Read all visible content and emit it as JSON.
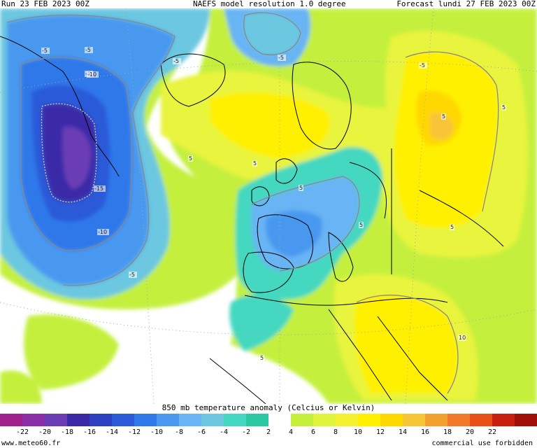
{
  "header": {
    "run": "Run 23 FEB 2023 00Z",
    "model": "NAEFS model resolution 1.0 degree",
    "forecast": "Forecast lundi 27 FEB 2023 00Z"
  },
  "map": {
    "caption": "850 mb temperature anomaly (Celcius or Kelvin)",
    "contour_labels": [
      "-5",
      "-10",
      "-15",
      "-5",
      "-10",
      "-5",
      "-5",
      "5",
      "5",
      "5",
      "10",
      "5",
      "5",
      "-5",
      "-5",
      "-5",
      "5",
      "5",
      "5"
    ],
    "colorbar": {
      "colors": [
        "#a0208c",
        "#8c2ea8",
        "#6a3cb4",
        "#3a2aa8",
        "#2a40c0",
        "#2a5ad8",
        "#2f78ea",
        "#4a98f0",
        "#68b4f4",
        "#6cc8e0",
        "#44d8c0",
        "#2cc8a4",
        "#ffffff",
        "#c4f03c",
        "#e0f43c",
        "#f4f030",
        "#fff000",
        "#ffd800",
        "#f8c438",
        "#f4a030",
        "#f07828",
        "#e85018",
        "#c82010",
        "#a01008"
      ],
      "ticks": [
        "-22",
        "-20",
        "-18",
        "-16",
        "-14",
        "-12",
        "-10",
        "-8",
        "-6",
        "-4",
        "-2",
        "2",
        "4",
        "6",
        "8",
        "10",
        "12",
        "14",
        "16",
        "18",
        "20",
        "22"
      ]
    }
  },
  "footer": {
    "left": "www.meteo60.fr",
    "right": "commercial use forbidden"
  }
}
